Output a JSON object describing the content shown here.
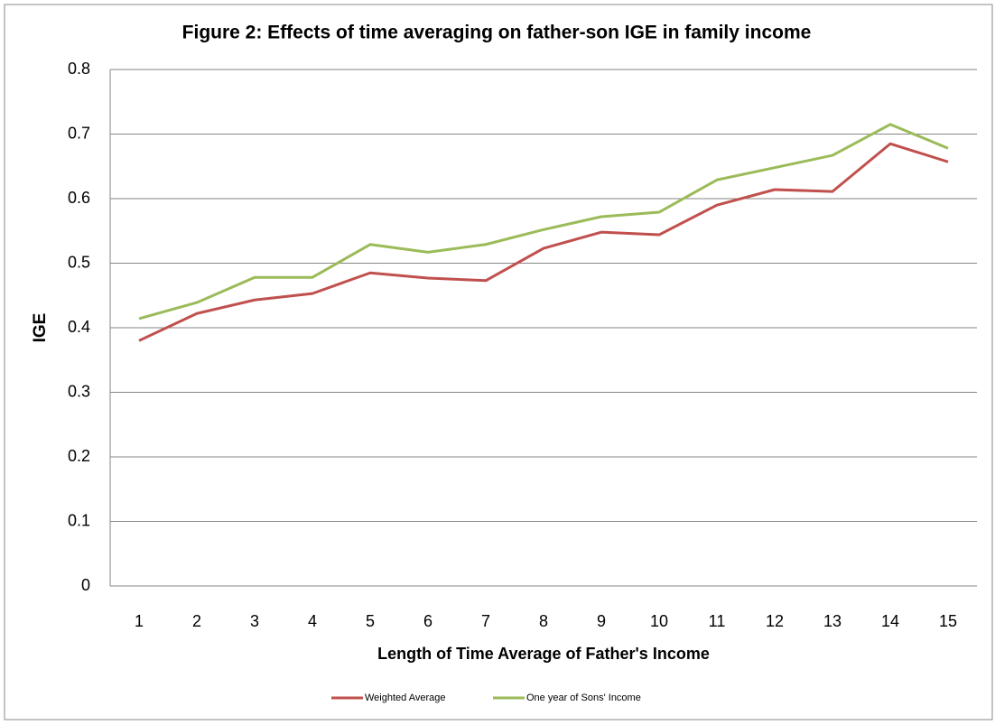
{
  "chart_data": {
    "type": "line",
    "title": "Figure 2:  Effects of time averaging on father-son IGE in family income",
    "x_label": "Length of Time Average of Father's Income",
    "y_label": "IGE",
    "categories": [
      1,
      2,
      3,
      4,
      5,
      6,
      7,
      8,
      9,
      10,
      11,
      12,
      13,
      14,
      15
    ],
    "series": [
      {
        "name": "Weighted Average",
        "color": "#c0504d",
        "values": [
          0.38,
          0.422,
          0.443,
          0.453,
          0.485,
          0.477,
          0.473,
          0.523,
          0.548,
          0.544,
          0.59,
          0.614,
          0.611,
          0.685,
          0.657
        ]
      },
      {
        "name": "One year of Sons' Income",
        "color": "#9bbb59",
        "values": [
          0.414,
          0.439,
          0.478,
          0.478,
          0.529,
          0.517,
          0.529,
          0.552,
          0.572,
          0.579,
          0.629,
          0.648,
          0.667,
          0.715,
          0.678
        ]
      }
    ],
    "ylim": [
      0,
      0.8
    ],
    "yticks": [
      0,
      0.1,
      0.2,
      0.3,
      0.4,
      0.5,
      0.6,
      0.7,
      0.8
    ],
    "grid": true,
    "legend": "bottom"
  }
}
